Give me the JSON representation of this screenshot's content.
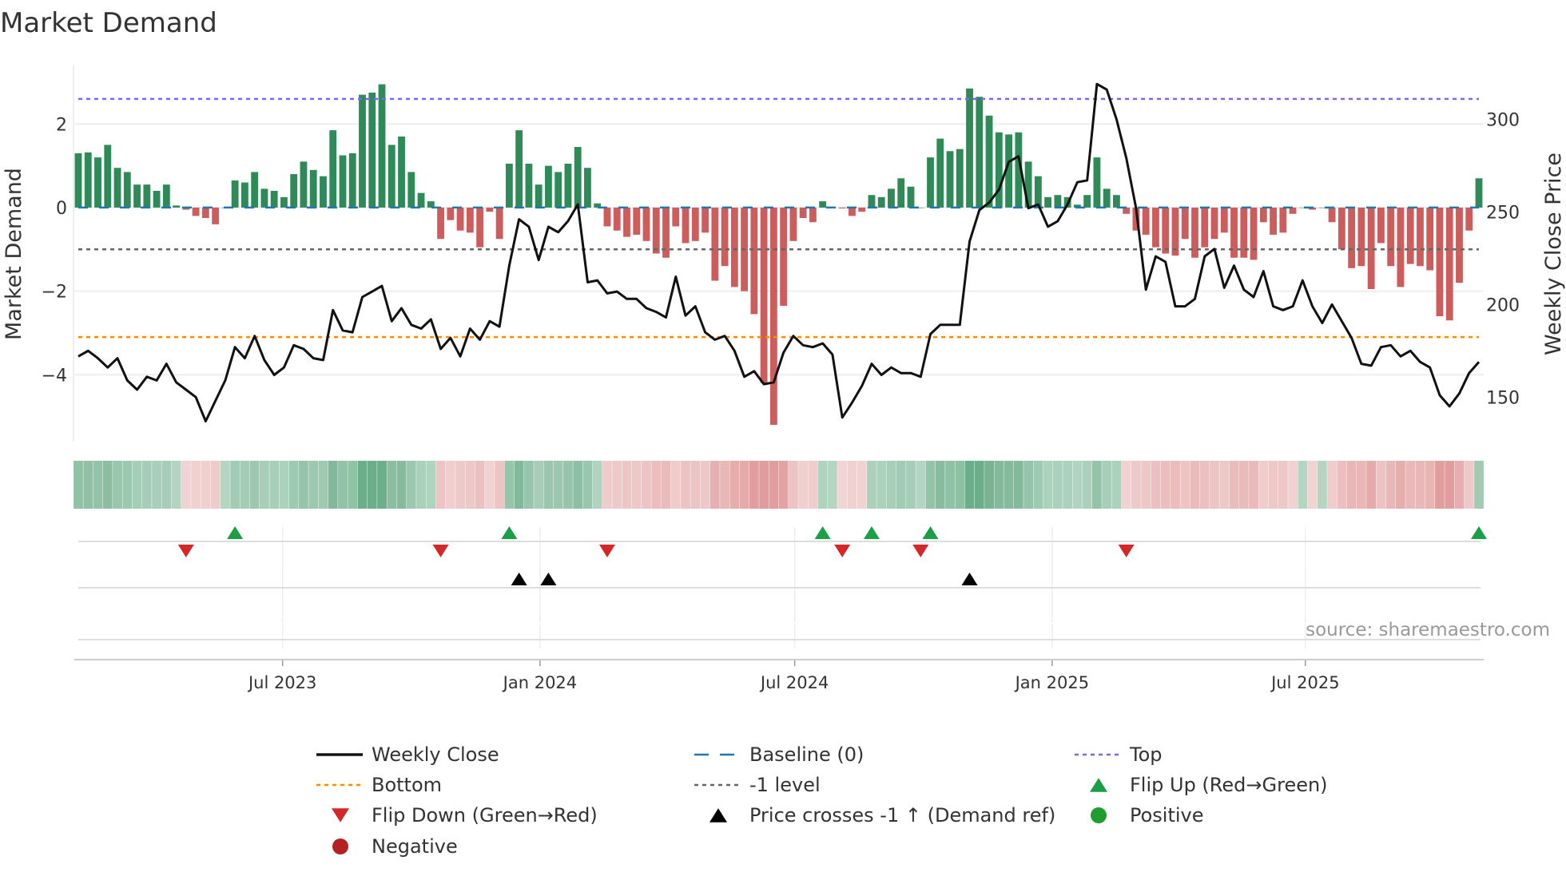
{
  "chart_data": {
    "type": "bar",
    "title": "Market Demand",
    "ylabel": "Market Demand",
    "y2label": "Weekly Close Price",
    "ylim": [
      -5.6,
      3.4
    ],
    "y2lim": [
      126,
      329
    ],
    "yticks": [
      2,
      0,
      -2,
      -4
    ],
    "y2ticks": [
      300,
      250,
      200,
      150
    ],
    "xticks": [
      {
        "label": "Jul 2023",
        "date": "2023-07-01"
      },
      {
        "label": "Jan 2024",
        "date": "2024-01-01"
      },
      {
        "label": "Jul 2024",
        "date": "2024-07-01"
      },
      {
        "label": "Jan 2025",
        "date": "2025-01-01"
      },
      {
        "label": "Jul 2025",
        "date": "2025-07-01"
      }
    ],
    "start_date": "2023-02-05",
    "end_date": "2025-11-02",
    "frequency": "weekly",
    "levels": {
      "top": 2.6,
      "bottom": -3.1,
      "minus_one": -1,
      "baseline": 0
    },
    "demand": [
      1.3,
      1.32,
      1.2,
      1.5,
      0.95,
      0.85,
      0.55,
      0.55,
      0.4,
      0.55,
      0.05,
      -0.05,
      -0.2,
      -0.25,
      -0.4,
      0,
      0.65,
      0.6,
      0.85,
      0.45,
      0.4,
      0.25,
      0.8,
      1.1,
      0.9,
      0.75,
      1.85,
      1.25,
      1.3,
      2.7,
      2.75,
      2.95,
      1.5,
      1.7,
      0.85,
      0.35,
      0.15,
      -0.75,
      -0.3,
      -0.55,
      -0.6,
      -0.95,
      -0.1,
      -0.75,
      1.05,
      1.85,
      1.05,
      0.55,
      1.0,
      0.85,
      1.05,
      1.45,
      0.95,
      0.1,
      -0.45,
      -0.55,
      -0.7,
      -0.65,
      -0.8,
      -1.1,
      -1.2,
      -0.45,
      -0.85,
      -0.8,
      -0.6,
      -1.75,
      -1.4,
      -1.9,
      -2.0,
      -2.55,
      -4.2,
      -5.2,
      -2.35,
      -0.8,
      -0.25,
      -0.35,
      0.15,
      0,
      -0.02,
      -0.2,
      -0.1,
      0.3,
      0.25,
      0.45,
      0.7,
      0.5,
      0,
      1.2,
      1.65,
      1.35,
      1.4,
      2.85,
      2.65,
      2.2,
      1.8,
      1.75,
      1.8,
      1.1,
      0.75,
      0.25,
      0.3,
      0.25,
      0.07,
      0.3,
      1.2,
      0.45,
      0.3,
      -0.15,
      -0.55,
      -0.65,
      -0.95,
      -1.1,
      -1.15,
      -0.75,
      -1.2,
      -0.95,
      -0.75,
      -0.6,
      -1.2,
      -1.2,
      -1.25,
      -0.35,
      -0.65,
      -0.6,
      -0.15,
      0,
      -0.05,
      0,
      -0.35,
      -1.0,
      -1.45,
      -1.4,
      -1.95,
      -0.85,
      -1.4,
      -1.9,
      -1.35,
      -1.4,
      -1.5,
      -2.6,
      -2.7,
      -1.8,
      -0.55,
      0.7
    ],
    "weekly_close": [
      172,
      175,
      171,
      166,
      171,
      159,
      154,
      161,
      159,
      168,
      158,
      154,
      150,
      137,
      148,
      159,
      177,
      171,
      183,
      170,
      162,
      166,
      178,
      176,
      171,
      170,
      197,
      186,
      185,
      204,
      207,
      210,
      191,
      198,
      189,
      187,
      192,
      176,
      182,
      172,
      187,
      181,
      191,
      188,
      221,
      246,
      242,
      224,
      242,
      239,
      245,
      254,
      212,
      213,
      206,
      207,
      203,
      203,
      198,
      196,
      193,
      215,
      194,
      199,
      185,
      181,
      183,
      175,
      161,
      164,
      157,
      158,
      174,
      183,
      178,
      177,
      179,
      173,
      139,
      147,
      156,
      168,
      162,
      166,
      163,
      163,
      161,
      184,
      189,
      189,
      189,
      234,
      251,
      255,
      262,
      277,
      280,
      252,
      254,
      242,
      245,
      254,
      266,
      267,
      319,
      316,
      300,
      279,
      252,
      208,
      226,
      223,
      199,
      199,
      203,
      226,
      230,
      209,
      221,
      208,
      204,
      218,
      199,
      197,
      199,
      213,
      199,
      190,
      200,
      191,
      182,
      168,
      167,
      177,
      178,
      172,
      175,
      169,
      166,
      151,
      145,
      152,
      163,
      169
    ],
    "signals": {
      "flip_up": [
        "2023-05-28",
        "2023-12-10",
        "2024-07-21",
        "2024-08-25",
        "2024-10-06",
        "2025-11-02"
      ],
      "flip_down": [
        "2023-04-23",
        "2023-10-22",
        "2024-02-18",
        "2024-08-04",
        "2024-09-29",
        "2025-02-23"
      ],
      "price_crosses": [
        "2023-12-17",
        "2024-01-07",
        "2024-11-03"
      ]
    },
    "legend": [
      {
        "label": "Weekly Close",
        "kind": "line",
        "color": "#111111"
      },
      {
        "label": "Baseline (0)",
        "kind": "dash",
        "color": "#1f77b4"
      },
      {
        "label": "Top",
        "kind": "dot",
        "color": "#7b68ee"
      },
      {
        "label": "Bottom",
        "kind": "dot",
        "color": "#ff8c00"
      },
      {
        "label": "-1 level",
        "kind": "dot",
        "color": "#666666"
      },
      {
        "label": "Flip Up (Red→Green)",
        "kind": "tri-up",
        "color": "#1a9e46"
      },
      {
        "label": "Flip Down (Green→Red)",
        "kind": "tri-down",
        "color": "#d62728"
      },
      {
        "label": "Price crosses -1 ↑ (Demand ref)",
        "kind": "tri-up",
        "color": "#000000"
      },
      {
        "label": "Positive",
        "kind": "circle",
        "color": "#1f9e2f"
      },
      {
        "label": "Negative",
        "kind": "circle",
        "color": "#b22222"
      }
    ],
    "legend_placement": "bottom",
    "source": "source: sharemaestro.com",
    "colors": {
      "positive": "#2e8b57",
      "negative": "#cd5c5c"
    }
  }
}
